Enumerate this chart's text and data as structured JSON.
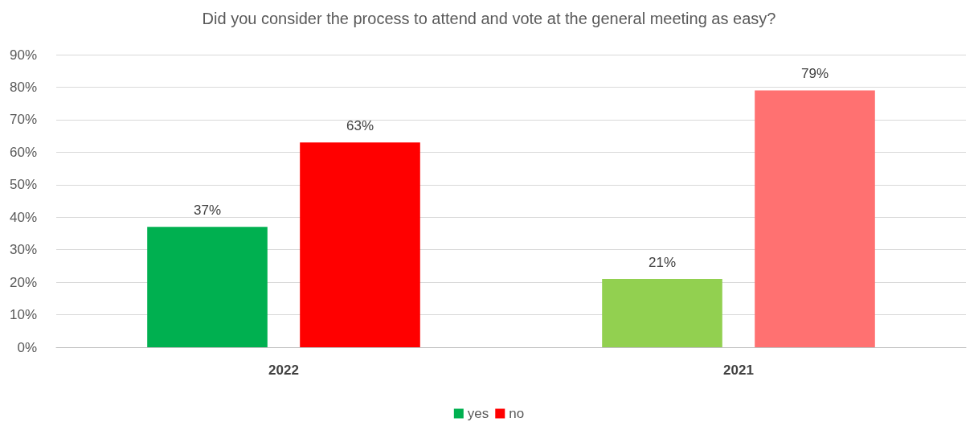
{
  "chart_data": {
    "type": "bar",
    "title": "Did you consider the process to attend and vote at the general meeting as easy?",
    "categories": [
      "2022",
      "2021"
    ],
    "series": [
      {
        "name": "yes",
        "color": "#00b050",
        "colors": [
          "#00b050",
          "#92d050"
        ],
        "values": [
          37,
          21
        ],
        "value_labels": [
          "37%",
          "21%"
        ]
      },
      {
        "name": "no",
        "color": "#ff0000",
        "colors": [
          "#ff0000",
          "#ff7171"
        ],
        "values": [
          63,
          79
        ],
        "value_labels": [
          "63%",
          "79%"
        ]
      }
    ],
    "ylim": [
      0,
      90
    ],
    "yticks": [
      {
        "value": 0,
        "label": "0%"
      },
      {
        "value": 10,
        "label": "10%"
      },
      {
        "value": 20,
        "label": "20%"
      },
      {
        "value": 30,
        "label": "30%"
      },
      {
        "value": 40,
        "label": "40%"
      },
      {
        "value": 50,
        "label": "50%"
      },
      {
        "value": 60,
        "label": "60%"
      },
      {
        "value": 70,
        "label": "70%"
      },
      {
        "value": 80,
        "label": "80%"
      },
      {
        "value": 90,
        "label": "90%"
      }
    ],
    "grid": "y",
    "legend": "bottom"
  }
}
